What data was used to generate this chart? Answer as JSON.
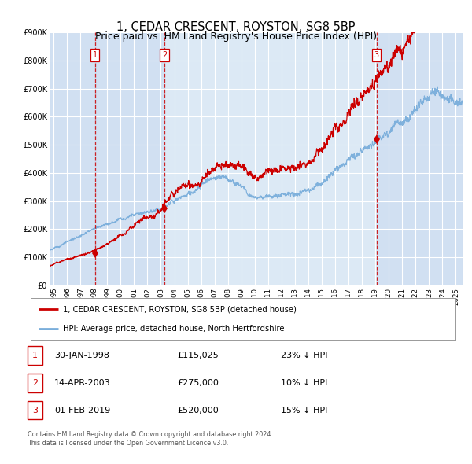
{
  "title": "1, CEDAR CRESCENT, ROYSTON, SG8 5BP",
  "subtitle": "Price paid vs. HM Land Registry's House Price Index (HPI)",
  "title_fontsize": 10.5,
  "subtitle_fontsize": 9,
  "bg_color": "#dce9f5",
  "grid_color": "#ffffff",
  "sale_color": "#cc0000",
  "hpi_color": "#7aaedb",
  "dashed_line_color": "#cc0000",
  "marker_box_color": "#cc0000",
  "legend_sale": "1, CEDAR CRESCENT, ROYSTON, SG8 5BP (detached house)",
  "legend_hpi": "HPI: Average price, detached house, North Hertfordshire",
  "table_entries": [
    {
      "num": "1",
      "date": "30-JAN-1998",
      "price": "£115,025",
      "pct": "23% ↓ HPI"
    },
    {
      "num": "2",
      "date": "14-APR-2003",
      "price": "£275,000",
      "pct": "10% ↓ HPI"
    },
    {
      "num": "3",
      "date": "01-FEB-2019",
      "price": "£520,000",
      "pct": "15% ↓ HPI"
    }
  ],
  "sale_dates_decimal": [
    1998.08,
    2003.28,
    2019.08
  ],
  "sale_prices": [
    115025,
    275000,
    520000
  ],
  "footer_line1": "Contains HM Land Registry data © Crown copyright and database right 2024.",
  "footer_line2": "This data is licensed under the Open Government Licence v3.0.",
  "ylim": [
    0,
    900000
  ],
  "xlim_start": 1994.7,
  "xlim_end": 2025.5,
  "shade_color": "#c8daf0",
  "shade_alpha": 0.55
}
